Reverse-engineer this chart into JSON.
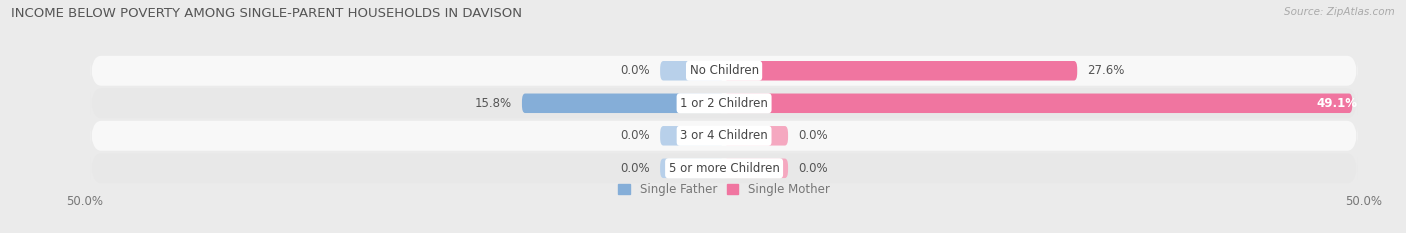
{
  "title": "INCOME BELOW POVERTY AMONG SINGLE-PARENT HOUSEHOLDS IN DAVISON",
  "source": "Source: ZipAtlas.com",
  "categories": [
    "No Children",
    "1 or 2 Children",
    "3 or 4 Children",
    "5 or more Children"
  ],
  "single_father": [
    0.0,
    15.8,
    0.0,
    0.0
  ],
  "single_mother": [
    27.6,
    49.1,
    0.0,
    0.0
  ],
  "father_color": "#85AED8",
  "mother_color": "#F075A0",
  "father_color_light": "#B8D0EA",
  "mother_color_light": "#F5A8C0",
  "axis_max": 50.0,
  "axis_min": -50.0,
  "bar_height": 0.6,
  "min_bar_width": 5.0,
  "background_color": "#ebebeb",
  "row_colors": [
    "#f8f8f8",
    "#e8e8e8",
    "#f8f8f8",
    "#e8e8e8"
  ],
  "label_fontsize": 8.5,
  "title_fontsize": 9.5,
  "source_fontsize": 7.5,
  "value_fontsize": 8.5
}
